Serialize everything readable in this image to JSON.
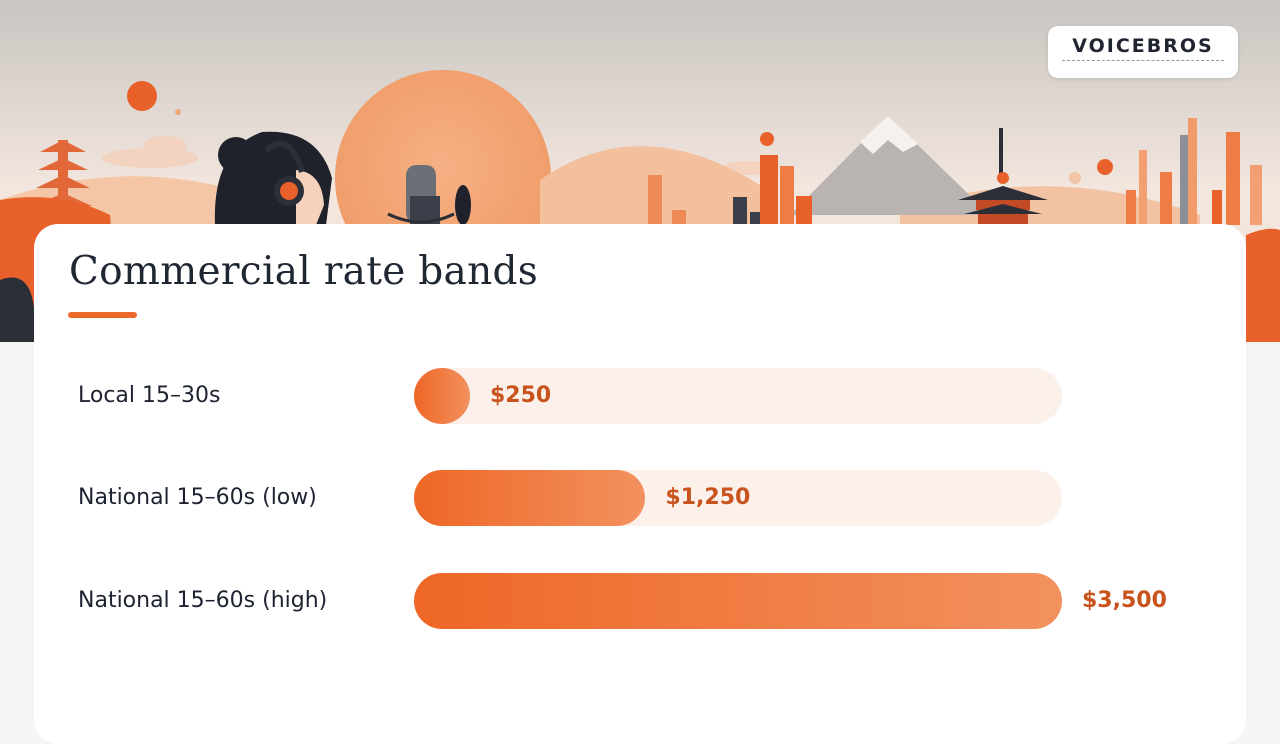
{
  "brand": {
    "name": "VOICEBROS"
  },
  "colors": {
    "accent": "#ec6a2c",
    "bar_start": "#ee6726",
    "bar_end": "#f2915f",
    "track": "#fcf0ea",
    "value_text": "#c9531c",
    "title_text": "#1f2733"
  },
  "chart_data": {
    "type": "bar",
    "orientation": "horizontal",
    "title": "Commercial rate bands",
    "categories": [
      "Local 15–30s",
      "National 15–60s (low)",
      "National 15–60s (high)"
    ],
    "values": [
      250,
      1250,
      3500
    ],
    "value_labels": [
      "$250",
      "$1,250",
      "$3,500"
    ],
    "xlim": [
      0,
      3500
    ],
    "unit": "USD",
    "grid": false,
    "legend": "none"
  }
}
